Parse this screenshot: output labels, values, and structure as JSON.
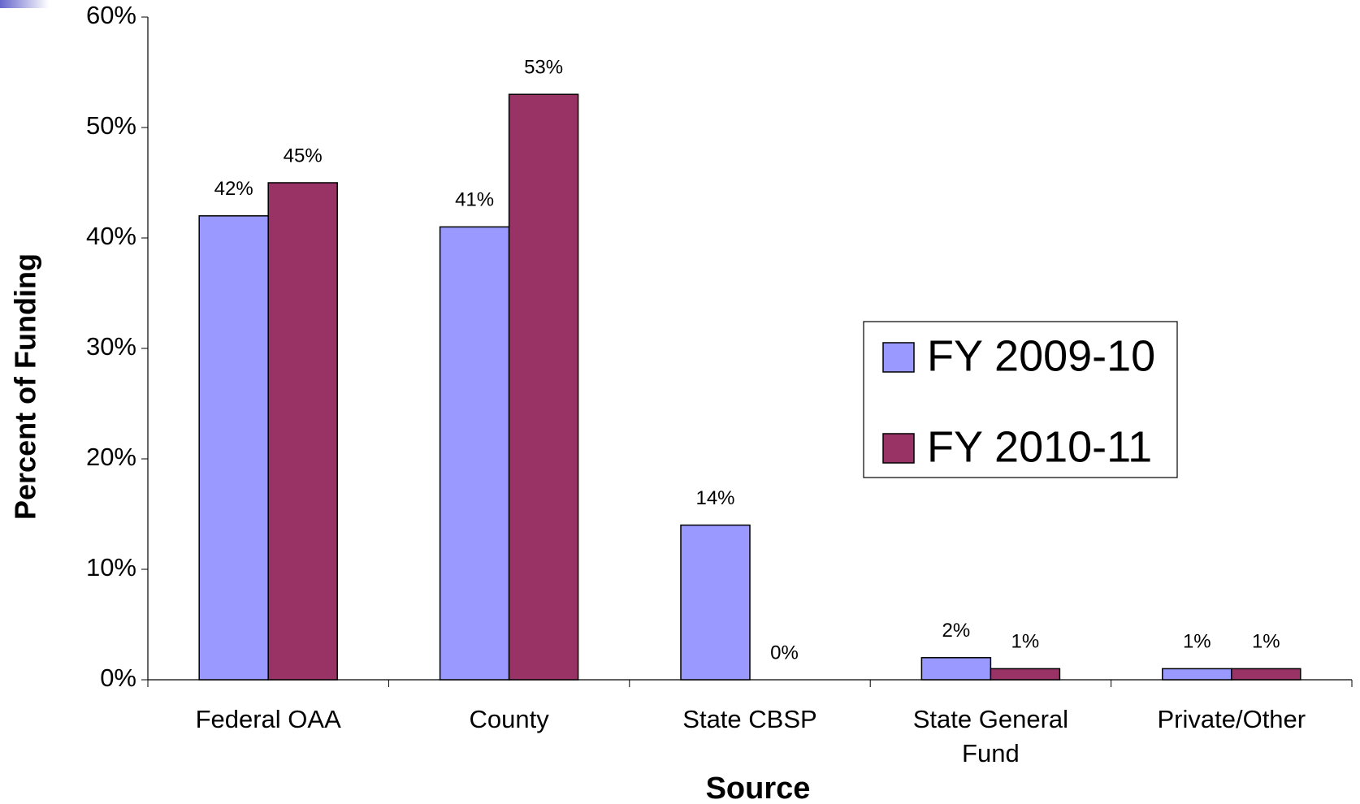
{
  "chart_data": {
    "type": "bar",
    "x_label": "Source",
    "y_label": "Percent of Funding",
    "categories": [
      "Federal OAA",
      "County",
      "State CBSP",
      "State General Fund",
      "Private/Other"
    ],
    "series": [
      {
        "name": "FY 2009-10",
        "color": "#9999ff",
        "values": [
          42,
          41,
          14,
          2,
          1
        ],
        "value_labels": [
          "42%",
          "41%",
          "14%",
          "2%",
          "1%"
        ]
      },
      {
        "name": "FY 2010-11",
        "color": "#993366",
        "values": [
          45,
          53,
          0,
          1,
          1
        ],
        "value_labels": [
          "45%",
          "53%",
          "0%",
          "1%",
          "1%"
        ]
      }
    ],
    "ylim": [
      0,
      60
    ],
    "yticks": [
      {
        "value": 0,
        "label": "0%"
      },
      {
        "value": 10,
        "label": "10%"
      },
      {
        "value": 20,
        "label": "20%"
      },
      {
        "value": 30,
        "label": "30%"
      },
      {
        "value": 40,
        "label": "40%"
      },
      {
        "value": 50,
        "label": "50%"
      },
      {
        "value": 60,
        "label": "60%"
      }
    ],
    "grid": false,
    "legend": "right"
  }
}
